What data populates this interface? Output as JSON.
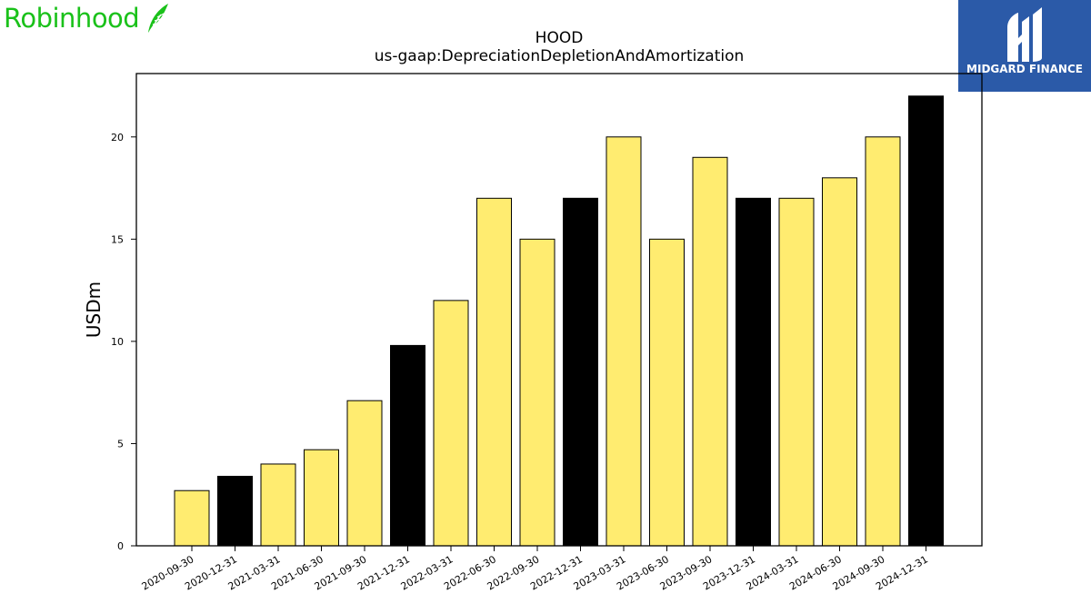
{
  "branding": {
    "left_logo_text": "Robinhood",
    "left_logo_icon": "feather-icon",
    "left_logo_color": "#1ac11a",
    "right_logo_text": "MIDGARD FINANCE",
    "right_logo_icon": "midgard-logo-icon",
    "right_logo_bg": "#2b5aa8"
  },
  "chart_data": {
    "type": "bar",
    "title": "HOOD",
    "subtitle": "us-gaap:DepreciationDepletionAndAmortization",
    "xlabel": "",
    "ylabel": "USDm",
    "ylim": [
      0,
      23.1
    ],
    "yticks": [
      0,
      5,
      10,
      15,
      20
    ],
    "grid": false,
    "legend": "none",
    "categories": [
      "2020-09-30",
      "2020-12-31",
      "2021-03-31",
      "2021-06-30",
      "2021-09-30",
      "2021-12-31",
      "2022-03-31",
      "2022-06-30",
      "2022-09-30",
      "2022-12-31",
      "2023-03-31",
      "2023-06-30",
      "2023-09-30",
      "2023-12-31",
      "2024-03-31",
      "2024-06-30",
      "2024-09-30",
      "2024-12-31"
    ],
    "values": [
      2.7,
      3.4,
      4.0,
      4.7,
      7.1,
      9.8,
      12,
      17,
      15,
      17,
      20,
      15,
      19,
      17,
      17,
      18,
      20,
      22
    ],
    "bar_colors": [
      "#ffec70",
      "#000000",
      "#ffec70",
      "#ffec70",
      "#ffec70",
      "#000000",
      "#ffec70",
      "#ffec70",
      "#ffec70",
      "#000000",
      "#ffec70",
      "#ffec70",
      "#ffec70",
      "#000000",
      "#ffec70",
      "#ffec70",
      "#ffec70",
      "#000000"
    ]
  }
}
